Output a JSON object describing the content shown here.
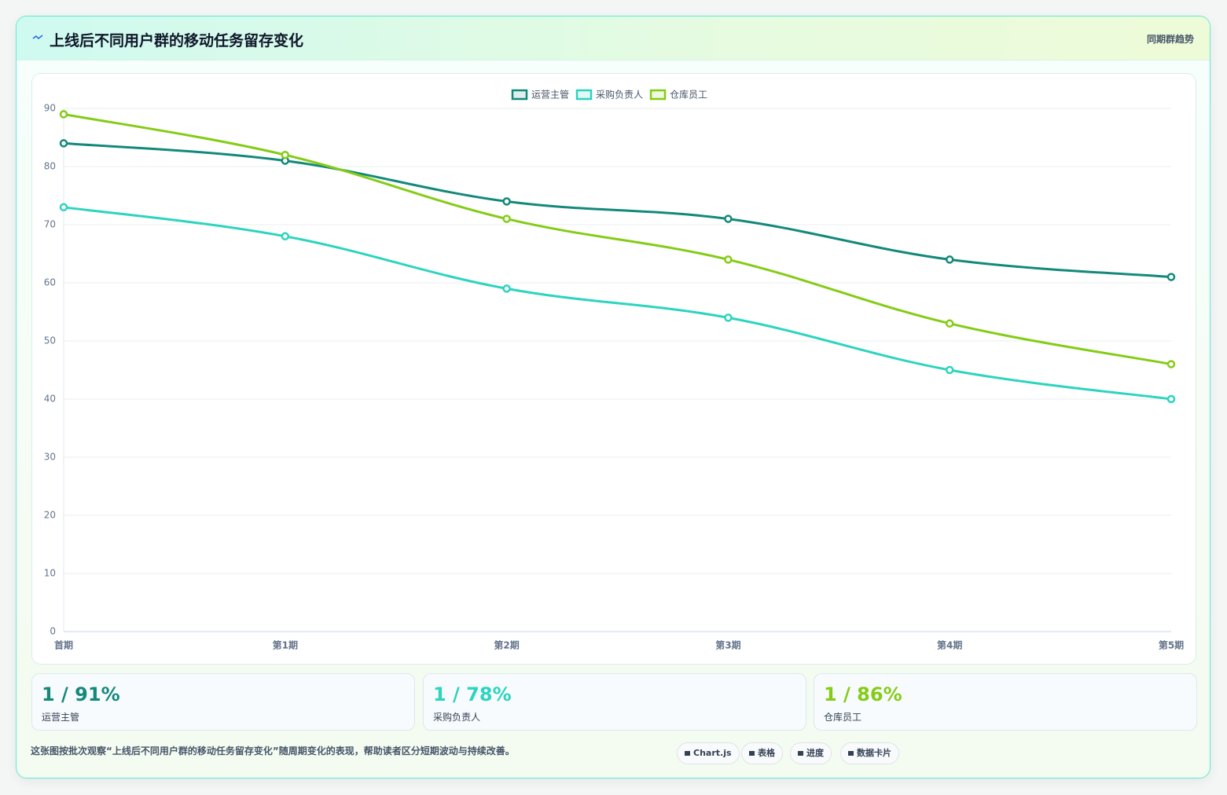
{
  "header": {
    "title": "上线后不同用户群的移动任务留存变化",
    "tag": "同期群趋势"
  },
  "chart_data": {
    "type": "line",
    "categories": [
      "首期",
      "第1期",
      "第2期",
      "第3期",
      "第4期",
      "第5期"
    ],
    "series": [
      {
        "name": "运营主管",
        "color": "#13897a",
        "values": [
          84,
          81,
          74,
          71,
          64,
          61
        ]
      },
      {
        "name": "采购负责人",
        "color": "#2dd4bf",
        "values": [
          73,
          68,
          59,
          54,
          45,
          40
        ]
      },
      {
        "name": "仓库员工",
        "color": "#84cc16",
        "values": [
          89,
          82,
          71,
          64,
          53,
          46
        ]
      }
    ],
    "ylim": [
      0,
      90
    ],
    "yticks": [
      0,
      10,
      20,
      30,
      40,
      50,
      60,
      70,
      80,
      90
    ],
    "grid": true,
    "legend": "top"
  },
  "cards": [
    {
      "value": "1 / 91%",
      "label": "运营主管"
    },
    {
      "value": "1 / 78%",
      "label": "采购负责人"
    },
    {
      "value": "1 / 86%",
      "label": "仓库员工"
    }
  ],
  "footer": {
    "note": "这张图按批次观察“上线后不同用户群的移动任务留存变化”随周期变化的表现，帮助读者区分短期波动与持续改善。",
    "chips": [
      "Chart.js",
      "表格",
      "进度",
      "数据卡片"
    ]
  }
}
